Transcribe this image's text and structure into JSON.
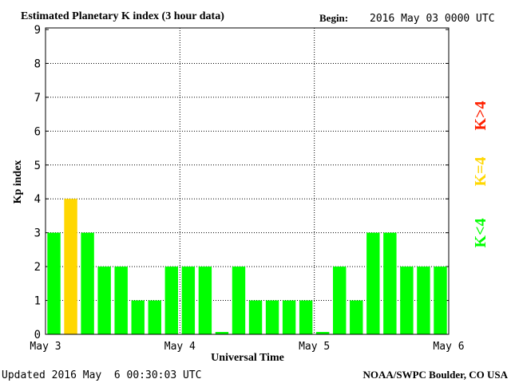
{
  "chart_data": {
    "type": "bar",
    "title": "Estimated Planetary K index (3 hour data)",
    "begin_label": "Begin:",
    "begin": "2016 May 03 0000 UTC",
    "y_label": "Kp index",
    "x_label": "Universal Time",
    "updated": "Updated 2016 May  6 00:30:03 UTC",
    "source": "NOAA/SWPC Boulder, CO USA",
    "x": [
      1.5,
      4.5,
      7.5,
      10.5,
      13.5,
      16.5,
      19.5,
      22.5,
      25.5,
      28.5,
      31.5,
      34.5,
      37.5,
      40.5,
      43.5,
      46.5,
      49.5,
      52.5,
      55.5,
      58.5,
      61.5,
      64.5,
      67.5,
      70.5
    ],
    "values": [
      3,
      4,
      3,
      2,
      2,
      1,
      1,
      2,
      2,
      2,
      0,
      2,
      1,
      1,
      1,
      1,
      0,
      2,
      1,
      3,
      3,
      2,
      2,
      2
    ],
    "colors": [
      "#00ff00",
      "#ffd700",
      "#00ff00",
      "#00ff00",
      "#00ff00",
      "#00ff00",
      "#00ff00",
      "#00ff00",
      "#00ff00",
      "#00ff00",
      "#00ff00",
      "#00ff00",
      "#00ff00",
      "#00ff00",
      "#00ff00",
      "#00ff00",
      "#00ff00",
      "#00ff00",
      "#00ff00",
      "#00ff00",
      "#00ff00",
      "#00ff00",
      "#00ff00",
      "#00ff00"
    ],
    "xlim": [
      0,
      72
    ],
    "xticks": [
      {
        "value": 0,
        "label": "May 3"
      },
      {
        "value": 24,
        "label": "May 4"
      },
      {
        "value": 48,
        "label": "May 5"
      },
      {
        "value": 72,
        "label": "May 6"
      }
    ],
    "ylim": [
      0,
      9
    ],
    "yticks": [
      0,
      1,
      2,
      3,
      4,
      5,
      6,
      7,
      8,
      9
    ],
    "grid": true,
    "legend": [
      {
        "label": "K<4",
        "color": "#00ff00"
      },
      {
        "label": "K=4",
        "color": "#ffd700"
      },
      {
        "label": "K>4",
        "color": "#ff2000"
      }
    ]
  }
}
